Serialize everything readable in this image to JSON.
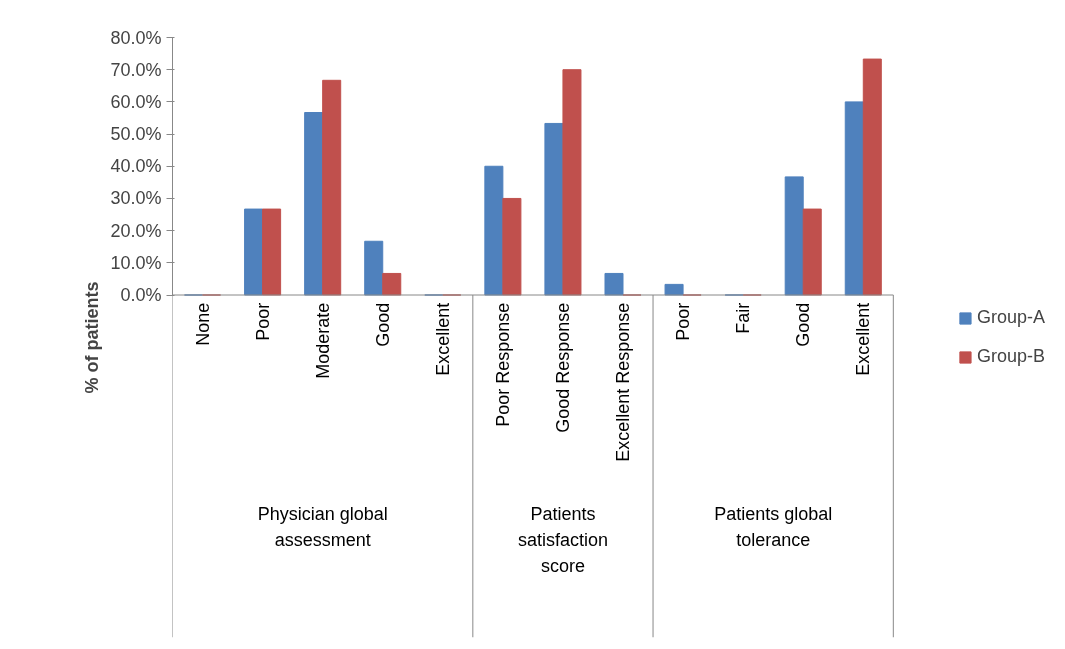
{
  "chart_data": {
    "type": "bar",
    "ylabel": "% of patients",
    "categories": [
      "None",
      "Poor",
      "Moderate",
      "Good",
      "Excellent",
      "Poor Response",
      "Good Response",
      "Excellent Response",
      "Poor",
      "Fair",
      "Good",
      "Excellent"
    ],
    "series": [
      {
        "name": "Group-A",
        "color": "#4f81bd",
        "values": [
          0,
          26.7,
          56.7,
          16.7,
          0,
          40,
          53.3,
          6.7,
          3.3,
          0,
          36.7,
          60
        ]
      },
      {
        "name": "Group-B",
        "color": "#c0504d",
        "values": [
          0,
          26.7,
          66.7,
          6.7,
          0,
          30,
          70,
          0,
          0,
          0,
          26.7,
          73.3
        ]
      }
    ],
    "annotations": [
      "Physician global assessment",
      "Patients satisfaction score",
      "Patients global tolerance"
    ],
    "ylim": [
      0,
      80
    ],
    "yticks": [
      {
        "value": 0,
        "label": "0.0%"
      },
      {
        "value": 10,
        "label": "10.0%"
      },
      {
        "value": 20,
        "label": "20.0%"
      },
      {
        "value": 30,
        "label": "30.0%"
      },
      {
        "value": 40,
        "label": "40.0%"
      },
      {
        "value": 50,
        "label": "50.0%"
      },
      {
        "value": 60,
        "label": "60.0%"
      },
      {
        "value": 70,
        "label": "70.0%"
      },
      {
        "value": 80,
        "label": "80.0%"
      }
    ],
    "grid": false,
    "legend": "right"
  }
}
